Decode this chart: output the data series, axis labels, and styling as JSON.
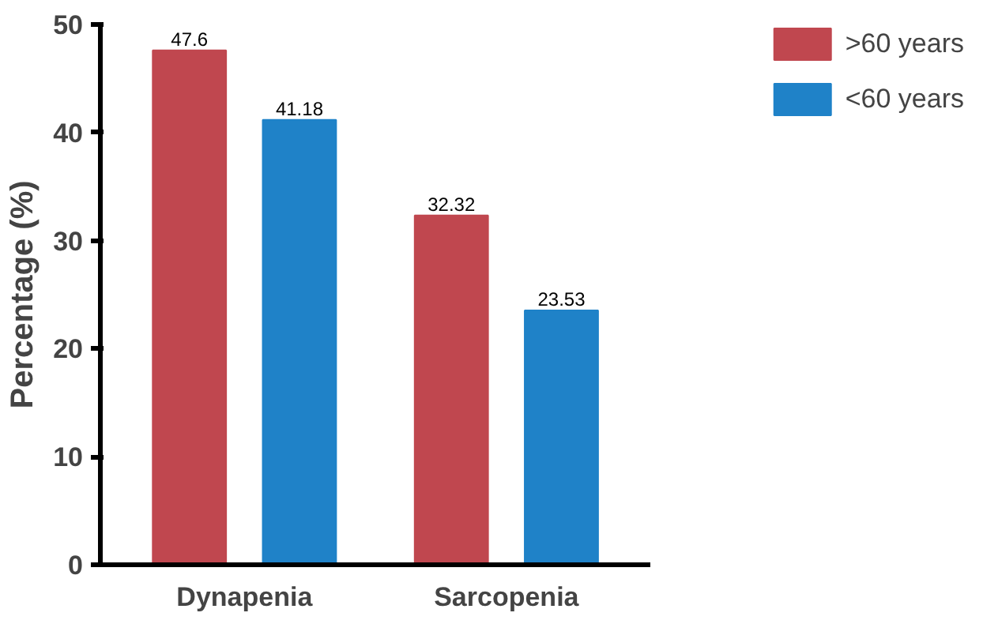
{
  "chart_data": {
    "type": "bar",
    "ylabel": "Percentage (%)",
    "categories": [
      "Dynapenia",
      "Sarcopenia"
    ],
    "series": [
      {
        "name": ">60 years",
        "color": "#c0474f",
        "values": [
          47.6,
          32.32
        ]
      },
      {
        "name": "<60 years",
        "color": "#1f82c8",
        "values": [
          41.18,
          23.53
        ]
      }
    ],
    "ylim": [
      0,
      50
    ],
    "yticks": [
      0,
      10,
      20,
      30,
      40,
      50
    ],
    "grid": false,
    "legend": "right",
    "data_labels": true
  }
}
